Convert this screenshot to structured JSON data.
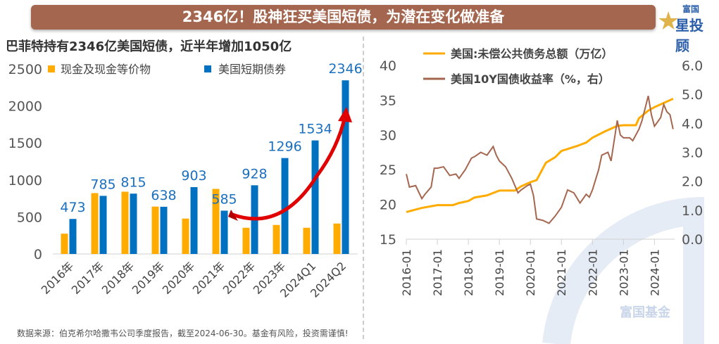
{
  "header": {
    "title": "2346亿！股神狂买美国短债，为潜在变化做准备",
    "logo_top": "富国",
    "logo_bottom": "星投顾"
  },
  "footer": "数据来源：伯克希尔哈撒韦公司季度报告，截至2024-06-30。基金有风险，投资需谨慎!",
  "watermark": "富国基金",
  "colors": {
    "cash": "#ffab00",
    "tbill": "#0070c0",
    "debt": "#ffab00",
    "yield": "#a5664f",
    "arrow": "#e00000"
  },
  "chart_data": [
    {
      "type": "bar",
      "title": "巴菲特持有2346亿美国短债，近半年增加1050亿",
      "categories": [
        "2016年",
        "2017年",
        "2018年",
        "2019年",
        "2020年",
        "2021年",
        "2022年",
        "2023年",
        "2024Q1",
        "2024Q2"
      ],
      "series": [
        {
          "name": "现金及现金等价物",
          "values": [
            274,
            822,
            841,
            640,
            478,
            879,
            354,
            392,
            354,
            411
          ]
        },
        {
          "name": "美国短期债券",
          "values": [
            473,
            785,
            815,
            638,
            903,
            585,
            928,
            1296,
            1534,
            2346
          ],
          "labels": [
            "473",
            "785",
            "815",
            "638",
            "903",
            "585",
            "928",
            "1296",
            "1534",
            "2346"
          ]
        }
      ],
      "ylim": [
        0,
        2500
      ],
      "yticks": [
        "0",
        "500",
        "1000",
        "1500",
        "2000",
        "2500"
      ],
      "legend": "top"
    },
    {
      "type": "line",
      "xticks": [
        "2016-01",
        "2017-01",
        "2018-01",
        "2019-01",
        "2020-01",
        "2021-01",
        "2022-01",
        "2023-01",
        "2024-01"
      ],
      "xlim": [
        2016.0,
        2024.65
      ],
      "ylim_left": [
        15,
        40
      ],
      "yticks_left": [
        "15",
        "20",
        "25",
        "30",
        "35",
        "40"
      ],
      "ylim_right": [
        0,
        6
      ],
      "yticks_right": [
        "0.0",
        "1.0",
        "2.0",
        "3.0",
        "4.0",
        "5.0",
        "6.0"
      ],
      "series": [
        {
          "name": "美国:未偿公共债务总额（万亿）",
          "axis": "left",
          "points": [
            [
              2016.0,
              18.9
            ],
            [
              2016.5,
              19.5
            ],
            [
              2017.0,
              19.9
            ],
            [
              2017.5,
              19.9
            ],
            [
              2017.7,
              20.2
            ],
            [
              2018.0,
              20.5
            ],
            [
              2018.2,
              21.0
            ],
            [
              2018.6,
              21.3
            ],
            [
              2019.0,
              22.0
            ],
            [
              2019.5,
              22.0
            ],
            [
              2019.7,
              22.6
            ],
            [
              2020.0,
              23.2
            ],
            [
              2020.2,
              23.5
            ],
            [
              2020.5,
              26.0
            ],
            [
              2020.8,
              26.8
            ],
            [
              2021.0,
              27.7
            ],
            [
              2021.5,
              28.4
            ],
            [
              2021.8,
              28.9
            ],
            [
              2022.0,
              29.6
            ],
            [
              2022.4,
              30.5
            ],
            [
              2022.8,
              31.3
            ],
            [
              2023.0,
              31.4
            ],
            [
              2023.4,
              31.4
            ],
            [
              2023.5,
              32.4
            ],
            [
              2023.8,
              33.5
            ],
            [
              2024.0,
              34.0
            ],
            [
              2024.3,
              34.6
            ],
            [
              2024.6,
              35.2
            ]
          ]
        },
        {
          "name": "美国10Y国债收益率（%，右）",
          "axis": "right",
          "points": [
            [
              2016.0,
              2.25
            ],
            [
              2016.1,
              1.8
            ],
            [
              2016.3,
              1.85
            ],
            [
              2016.5,
              1.4
            ],
            [
              2016.6,
              1.55
            ],
            [
              2016.8,
              1.8
            ],
            [
              2016.9,
              2.45
            ],
            [
              2017.0,
              2.45
            ],
            [
              2017.2,
              2.5
            ],
            [
              2017.4,
              2.2
            ],
            [
              2017.6,
              2.25
            ],
            [
              2017.7,
              2.1
            ],
            [
              2017.9,
              2.4
            ],
            [
              2018.1,
              2.8
            ],
            [
              2018.2,
              2.85
            ],
            [
              2018.4,
              3.0
            ],
            [
              2018.6,
              2.9
            ],
            [
              2018.8,
              3.2
            ],
            [
              2018.9,
              2.9
            ],
            [
              2019.0,
              2.7
            ],
            [
              2019.2,
              2.5
            ],
            [
              2019.4,
              2.1
            ],
            [
              2019.6,
              1.6
            ],
            [
              2019.7,
              1.7
            ],
            [
              2019.9,
              1.85
            ],
            [
              2020.0,
              1.9
            ],
            [
              2020.1,
              1.5
            ],
            [
              2020.2,
              0.7
            ],
            [
              2020.4,
              0.65
            ],
            [
              2020.6,
              0.55
            ],
            [
              2020.8,
              0.8
            ],
            [
              2021.0,
              1.1
            ],
            [
              2021.2,
              1.7
            ],
            [
              2021.4,
              1.6
            ],
            [
              2021.6,
              1.25
            ],
            [
              2021.8,
              1.55
            ],
            [
              2021.9,
              1.45
            ],
            [
              2022.0,
              1.7
            ],
            [
              2022.2,
              2.4
            ],
            [
              2022.3,
              2.9
            ],
            [
              2022.5,
              3.0
            ],
            [
              2022.6,
              2.7
            ],
            [
              2022.8,
              4.1
            ],
            [
              2022.9,
              3.6
            ],
            [
              2023.0,
              3.5
            ],
            [
              2023.2,
              3.5
            ],
            [
              2023.3,
              3.4
            ],
            [
              2023.5,
              3.8
            ],
            [
              2023.6,
              4.1
            ],
            [
              2023.8,
              4.95
            ],
            [
              2023.9,
              4.3
            ],
            [
              2024.0,
              3.9
            ],
            [
              2024.2,
              4.2
            ],
            [
              2024.3,
              4.65
            ],
            [
              2024.4,
              4.4
            ],
            [
              2024.5,
              4.3
            ],
            [
              2024.6,
              3.8
            ]
          ]
        }
      ],
      "legend": "top"
    }
  ]
}
